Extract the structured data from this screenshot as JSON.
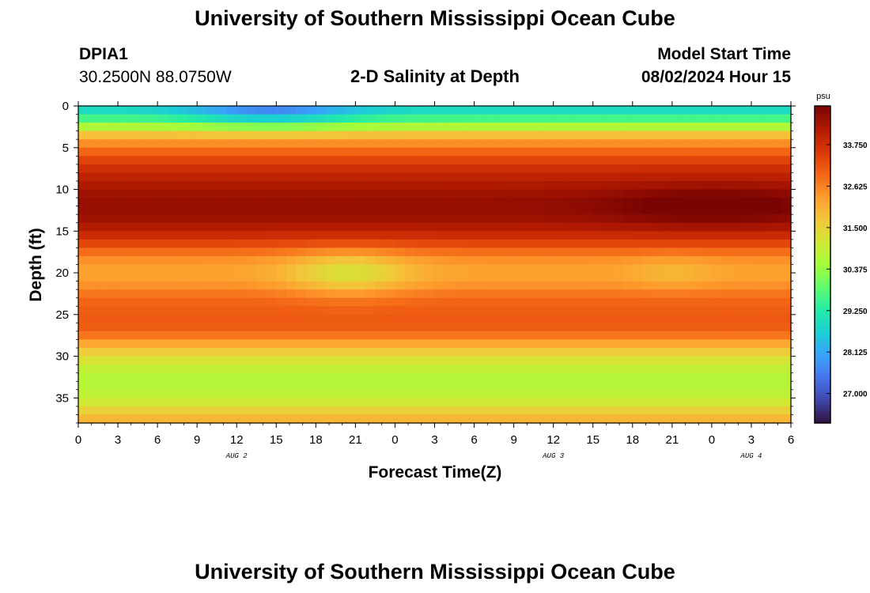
{
  "page": {
    "title": "University of Southern Mississippi Ocean Cube",
    "station_id": "DPIA1",
    "station_coords": "30.2500N  88.0750W",
    "plot_title": "2-D Salinity at Depth",
    "model_start_label": "Model Start Time",
    "model_start_value": "08/02/2024 Hour 15",
    "footer_title": "University of Southern Mississippi Ocean Cube"
  },
  "chart_data": {
    "type": "heatmap",
    "title": "2-D Salinity at Depth",
    "xlabel": "Forecast Time(Z)",
    "ylabel": "Depth (ft)",
    "x_tick_labels": [
      "0",
      "3",
      "6",
      "9",
      "12",
      "15",
      "18",
      "21",
      "0",
      "3",
      "6",
      "9",
      "12",
      "15",
      "18",
      "21",
      "0",
      "3",
      "6"
    ],
    "date_labels": [
      {
        "label": "AUG 2",
        "at_hours": 12
      },
      {
        "label": "AUG 3",
        "at_hours": 36
      },
      {
        "label": "AUG 4",
        "at_hours": 51
      }
    ],
    "xlim_hours": [
      0,
      54
    ],
    "y_ticks": [
      0,
      5,
      10,
      15,
      20,
      25,
      30,
      35
    ],
    "ylim": [
      0,
      38
    ],
    "y_inverted": true,
    "colorbar": {
      "unit": "psu",
      "range": [
        26.2,
        34.8
      ],
      "tick_values": [
        27.0,
        28.125,
        29.25,
        30.375,
        31.5,
        32.625,
        33.75
      ],
      "tick_labels": [
        "27.000",
        "28.125",
        "29.250",
        "30.375",
        "31.500",
        "32.625",
        "33.750"
      ],
      "colormap": [
        "#30123b",
        "#4145ab",
        "#4675ed",
        "#39a2fc",
        "#1bcfd4",
        "#24eca6",
        "#61fc6c",
        "#a4fc3b",
        "#d1e834",
        "#f3c63a",
        "#fe9b2d",
        "#f36315",
        "#d93806",
        "#b11901",
        "#7a0402"
      ]
    },
    "depth_profile": {
      "depths_ft": [
        0,
        1,
        2,
        3,
        4,
        5,
        6,
        7,
        8,
        9,
        10,
        11,
        12,
        13,
        14,
        15,
        16,
        17,
        18,
        19,
        20,
        21,
        22,
        23,
        24,
        25,
        26,
        27,
        28,
        29,
        30,
        31,
        32,
        33,
        34,
        35,
        36,
        37,
        38
      ],
      "salinity_psu": [
        28.6,
        29.2,
        30.0,
        31.3,
        32.3,
        32.7,
        33.2,
        33.6,
        33.9,
        34.1,
        34.3,
        34.45,
        34.5,
        34.45,
        34.3,
        34.0,
        33.6,
        33.1,
        32.6,
        32.3,
        32.2,
        32.3,
        32.6,
        32.9,
        33.0,
        33.1,
        33.1,
        33.0,
        32.5,
        31.8,
        31.4,
        31.0,
        30.8,
        30.7,
        30.8,
        30.9,
        31.3,
        31.8,
        32.1
      ]
    },
    "anomalies": [
      {
        "center_hours": 20.5,
        "center_depth_ft": 20,
        "min_psu": 31.2,
        "hours_halfwidth": 4.5,
        "depth_halfwidth": 2.6
      },
      {
        "center_hours": 45,
        "center_depth_ft": 20,
        "min_psu": 31.9,
        "hours_halfwidth": 3.0,
        "depth_halfwidth": 2.0
      },
      {
        "center_hours": 14.5,
        "center_depth_ft": 0.5,
        "min_psu": 27.7,
        "hours_halfwidth": 6,
        "depth_halfwidth": 2.0
      },
      {
        "center_hours": 48,
        "center_depth_ft": 12,
        "min_psu": 35.0,
        "hours_halfwidth": 8,
        "depth_halfwidth": 2.5
      }
    ]
  }
}
